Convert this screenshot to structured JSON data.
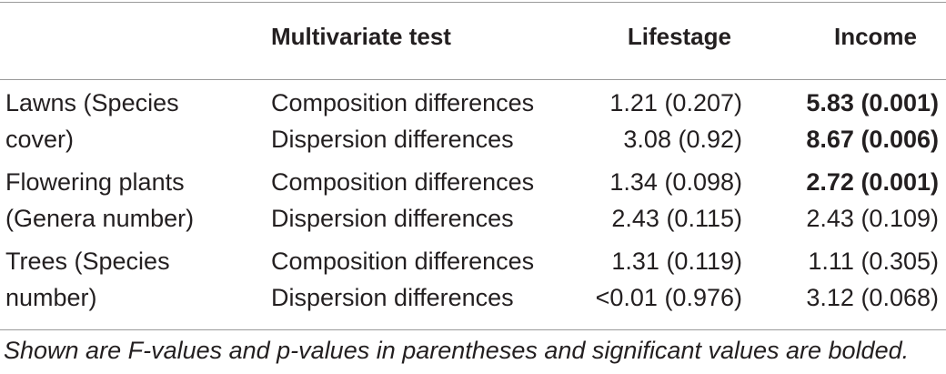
{
  "header": {
    "col1": "",
    "col2": "Multivariate test",
    "col3": "Lifestage",
    "col4": "Income"
  },
  "groups": [
    {
      "label_line1": "Lawns (Species",
      "label_line2": "cover)",
      "rows": [
        {
          "test": "Composition differences",
          "lifestage": "1.21 (0.207)",
          "income": "5.83 (0.001)",
          "income_bold": true
        },
        {
          "test": "Dispersion differences",
          "lifestage": "3.08 (0.92)",
          "income": "8.67 (0.006)",
          "income_bold": true
        }
      ]
    },
    {
      "label_line1": "Flowering plants",
      "label_line2": "(Genera number)",
      "rows": [
        {
          "test": "Composition differences",
          "lifestage": "1.34 (0.098)",
          "income": "2.72 (0.001)",
          "income_bold": true
        },
        {
          "test": "Dispersion differences",
          "lifestage": "2.43 (0.115)",
          "income": "2.43 (0.109)",
          "income_bold": false
        }
      ]
    },
    {
      "label_line1": "Trees (Species",
      "label_line2": "number)",
      "rows": [
        {
          "test": "Composition differences",
          "lifestage": "1.31 (0.119)",
          "income": "1.11 (0.305)",
          "income_bold": false
        },
        {
          "test": "Dispersion differences",
          "lifestage": "<0.01 (0.976)",
          "income": "3.12 (0.068)",
          "income_bold": false
        }
      ]
    }
  ],
  "footnote": "Shown are F-values and p-values in parentheses and significant values are bolded."
}
